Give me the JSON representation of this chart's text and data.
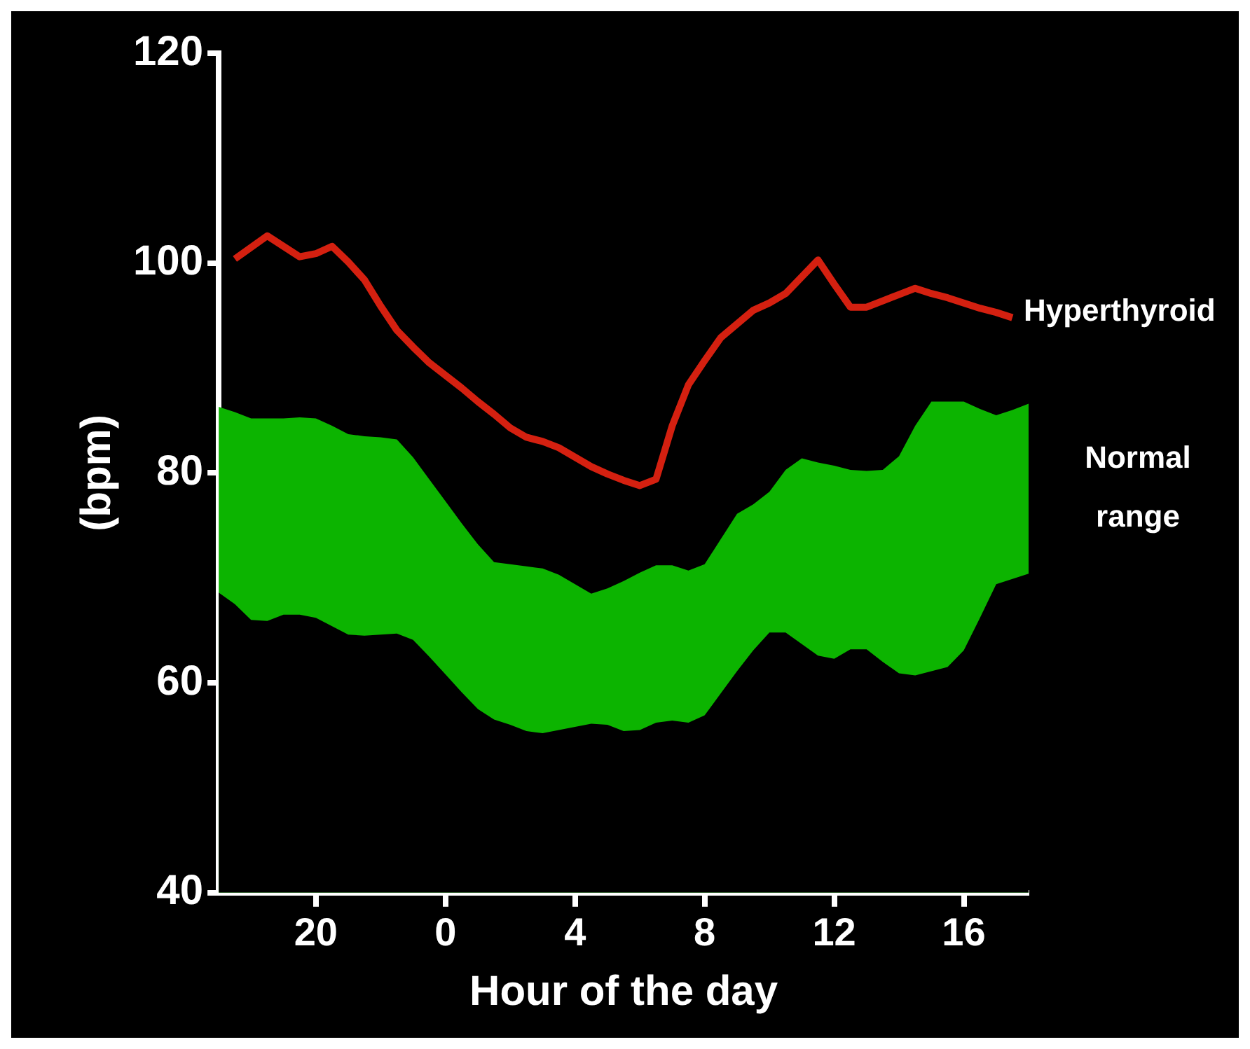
{
  "chart_data": {
    "type": "line",
    "xlabel": "Hour of the day",
    "ylabel": "(bpm)",
    "categories": [
      null,
      null,
      null,
      null,
      null,
      null,
      "20",
      null,
      null,
      null,
      null,
      null,
      null,
      null,
      "0",
      null,
      null,
      null,
      null,
      null,
      null,
      null,
      "4",
      null,
      null,
      null,
      null,
      null,
      null,
      null,
      "8",
      null,
      null,
      null,
      null,
      null,
      null,
      null,
      "12",
      null,
      null,
      null,
      null,
      null,
      null,
      null,
      "16",
      null,
      null,
      null,
      null
    ],
    "ylim": [
      40,
      120
    ],
    "yticks": [
      40,
      60,
      80,
      100,
      120
    ],
    "grid": false,
    "legend": false,
    "series": [
      {
        "name": "Hyperthyroid",
        "color": "#d42010",
        "values": [
          null,
          100.4,
          101.5,
          102.6,
          101.6,
          100.6,
          100.9,
          101.6,
          100.1,
          98.4,
          95.9,
          93.6,
          92,
          90.5,
          89.3,
          88.1,
          86.8,
          85.6,
          84.3,
          83.4,
          83,
          82.4,
          81.5,
          80.6,
          79.9,
          79.3,
          78.8,
          79.4,
          84.5,
          88.4,
          90.7,
          92.9,
          94.2,
          95.5,
          96.2,
          97.1,
          98.7,
          100.3,
          98,
          95.8,
          95.8,
          96.4,
          97,
          97.6,
          97.1,
          96.7,
          96.2,
          95.7,
          95.3,
          94.8,
          null
        ]
      },
      {
        "type": "area",
        "color": "#0cb400",
        "values": [
          86.3,
          85.8,
          85.2,
          85.2,
          85.2,
          85.3,
          85.2,
          84.5,
          83.7,
          83.5,
          83.4,
          83.2,
          81.5,
          79.4,
          77.3,
          75.2,
          73.2,
          71.5,
          71.3,
          71.1,
          70.9,
          70.3,
          69.4,
          68.5,
          69,
          69.7,
          70.5,
          71.2,
          71.2,
          70.7,
          71.3,
          73.7,
          76.1,
          77,
          78.2,
          80.3,
          81.4,
          81,
          80.7,
          80.3,
          80.2,
          80.3,
          81.6,
          84.5,
          86.8,
          86.8,
          86.8,
          86.1,
          85.5,
          86,
          86.6
        ],
        "name": "Normal range"
      },
      {
        "type": "area",
        "color": "#000000",
        "values": [
          68.6,
          67.5,
          66,
          65.9,
          66.5,
          66.5,
          66.2,
          65.4,
          64.6,
          64.5,
          64.6,
          64.7,
          64.1,
          62.5,
          60.8,
          59.1,
          57.5,
          56.5,
          56,
          55.4,
          55.2,
          55.5,
          55.8,
          56.1,
          56,
          55.4,
          55.5,
          56.2,
          56.4,
          56.2,
          56.9,
          59,
          61.1,
          63.1,
          64.8,
          64.8,
          63.7,
          62.6,
          62.3,
          63.2,
          63.2,
          62,
          60.9,
          60.7,
          61.1,
          61.5,
          63.1,
          66.2,
          69.4,
          69.9,
          70.4
        ]
      }
    ]
  }
}
